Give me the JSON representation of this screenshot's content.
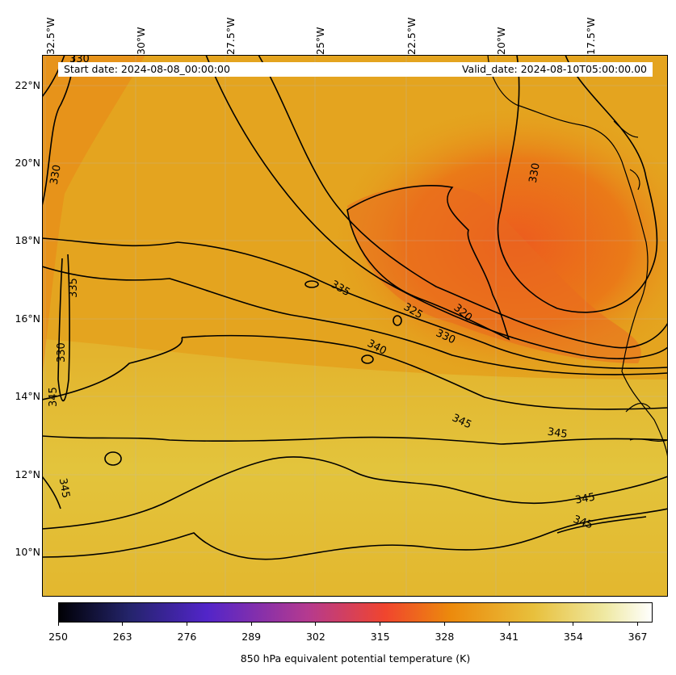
{
  "header": {
    "start_date": "Start date: 2024-08-08_00:00:00",
    "valid_date": "Valid_date: 2024-08-10T05:00:00.00"
  },
  "axes": {
    "lon_labels": [
      "32.5°W",
      "30°W",
      "27.5°W",
      "25°W",
      "22.5°W",
      "20°W",
      "17.5°W"
    ],
    "lat_labels": [
      "22°N",
      "20°N",
      "18°N",
      "16°N",
      "14°N",
      "12°N",
      "10°N"
    ],
    "lon_range": [
      -33,
      -15.5
    ],
    "lat_range": [
      8.8,
      22.8
    ],
    "grid": true
  },
  "contours": {
    "levels": [
      320,
      325,
      330,
      335,
      340,
      345
    ],
    "labels": [
      "330",
      "330",
      "330",
      "335",
      "330",
      "345",
      "335",
      "325",
      "320",
      "330",
      "340",
      "345",
      "345",
      "345",
      "345",
      "345"
    ]
  },
  "colorbar": {
    "title": "850 hPa equivalent potential temperature (K)",
    "ticks": [
      "250",
      "263",
      "276",
      "289",
      "302",
      "315",
      "328",
      "341",
      "354",
      "367"
    ],
    "min": 250,
    "max": 370,
    "colormap": [
      "#000004",
      "#24246b",
      "#5225c9",
      "#b53a8f",
      "#f0452e",
      "#ec8a0c",
      "#e8c03c",
      "#efe9a3",
      "#ffffff"
    ]
  },
  "colors": {
    "field_low": "#e96a1e",
    "field_mid": "#e5a11c",
    "field_high": "#e2c23c",
    "contour": "#000000",
    "coastline": "#000000"
  }
}
